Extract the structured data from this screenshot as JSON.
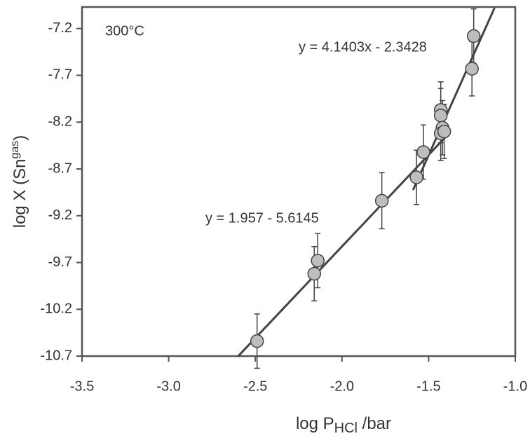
{
  "chart_data": {
    "type": "scatter",
    "annotation": "300°C",
    "y_label": {
      "text": "log X (Sn",
      "sup": "gas",
      "end": ")"
    },
    "x_label": {
      "text": "log P",
      "sub": "HCl",
      "end": " /bar"
    },
    "xlim": [
      -3.5,
      -1.0
    ],
    "ylim": [
      -10.7,
      -6.97
    ],
    "xticks": [
      -3.5,
      {
        "value": -3.0,
        "label": "-3.0"
      },
      -2.5,
      {
        "value": -2.0,
        "label": "-2.0"
      },
      -1.5,
      {
        "value": -1.0,
        "label": "-1.0"
      }
    ],
    "yticks": [
      -7.2,
      -7.7,
      -8.2,
      -8.7,
      -9.2,
      -9.7,
      -10.2,
      -10.7
    ],
    "marker_color": "#bdbdbd",
    "line_color": "#444444",
    "series": [
      {
        "x": [
          -2.49,
          -2.16,
          -2.14,
          -1.77,
          -1.57,
          -1.53,
          -1.43,
          -1.43,
          -1.42,
          -1.43,
          -1.41,
          -1.25,
          -1.24
        ],
        "values": [
          -10.54,
          -9.82,
          -9.68,
          -9.04,
          -8.79,
          -8.52,
          -8.07,
          -8.13,
          -8.26,
          -8.32,
          -8.3,
          -7.63,
          -7.28
        ],
        "errors": [
          0.29,
          0.29,
          0.29,
          0.3,
          0.29,
          0.29,
          0.3,
          0.29,
          0.29,
          0.29,
          0.29,
          0.29,
          0.29
        ]
      }
    ],
    "fit_lines": [
      {
        "label": "y = 1.957 - 5.6145",
        "x": [
          -2.6,
          -1.38
        ],
        "values": [
          -10.703,
          -8.315
        ]
      },
      {
        "label": "y = 4.1403x - 2.3428",
        "x": [
          -1.59,
          -1.12
        ],
        "values": [
          -8.926,
          -6.98
        ]
      }
    ]
  }
}
